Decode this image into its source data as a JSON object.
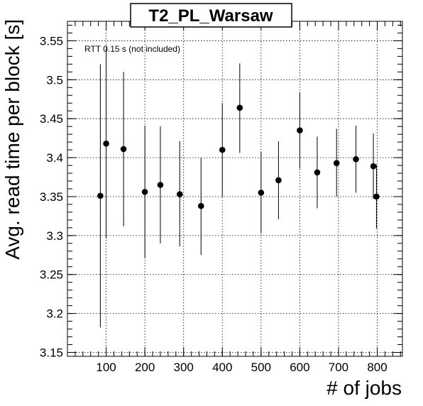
{
  "chart_data": {
    "type": "scatter",
    "title": "T2_PL_Warsaw",
    "xlabel": "# of jobs",
    "ylabel": "Avg. read time per block [s]",
    "annotation": "RTT 0.15 s (not included)",
    "xlim": [
      0,
      865
    ],
    "ylim": [
      3.145,
      3.575
    ],
    "x_ticks": [
      100,
      200,
      300,
      400,
      500,
      600,
      700,
      800
    ],
    "y_ticks": [
      3.15,
      3.2,
      3.25,
      3.3,
      3.35,
      3.4,
      3.45,
      3.5,
      3.55
    ],
    "y_tick_labels": [
      "3.15",
      "3.2",
      "3.25",
      "3.3",
      "3.35",
      "3.4",
      "3.45",
      "3.5",
      "3.55"
    ],
    "grid": true,
    "points": [
      {
        "x": 85,
        "y": 3.351,
        "y_low": 3.182,
        "y_high": 3.52
      },
      {
        "x": 100,
        "y": 3.418,
        "y_low": 3.296,
        "y_high": 3.54
      },
      {
        "x": 145,
        "y": 3.411,
        "y_low": 3.312,
        "y_high": 3.51
      },
      {
        "x": 200,
        "y": 3.356,
        "y_low": 3.271,
        "y_high": 3.441
      },
      {
        "x": 240,
        "y": 3.365,
        "y_low": 3.29,
        "y_high": 3.44
      },
      {
        "x": 290,
        "y": 3.353,
        "y_low": 3.286,
        "y_high": 3.421
      },
      {
        "x": 345,
        "y": 3.338,
        "y_low": 3.275,
        "y_high": 3.4
      },
      {
        "x": 400,
        "y": 3.41,
        "y_low": 3.35,
        "y_high": 3.47
      },
      {
        "x": 445,
        "y": 3.464,
        "y_low": 3.406,
        "y_high": 3.521
      },
      {
        "x": 500,
        "y": 3.355,
        "y_low": 3.303,
        "y_high": 3.408
      },
      {
        "x": 545,
        "y": 3.371,
        "y_low": 3.321,
        "y_high": 3.421
      },
      {
        "x": 600,
        "y": 3.435,
        "y_low": 3.386,
        "y_high": 3.484
      },
      {
        "x": 645,
        "y": 3.381,
        "y_low": 3.335,
        "y_high": 3.427
      },
      {
        "x": 695,
        "y": 3.393,
        "y_low": 3.35,
        "y_high": 3.437
      },
      {
        "x": 745,
        "y": 3.398,
        "y_low": 3.355,
        "y_high": 3.441
      },
      {
        "x": 790,
        "y": 3.389,
        "y_low": 3.347,
        "y_high": 3.431
      },
      {
        "x": 798,
        "y": 3.35,
        "y_low": 3.309,
        "y_high": 3.391
      }
    ]
  }
}
